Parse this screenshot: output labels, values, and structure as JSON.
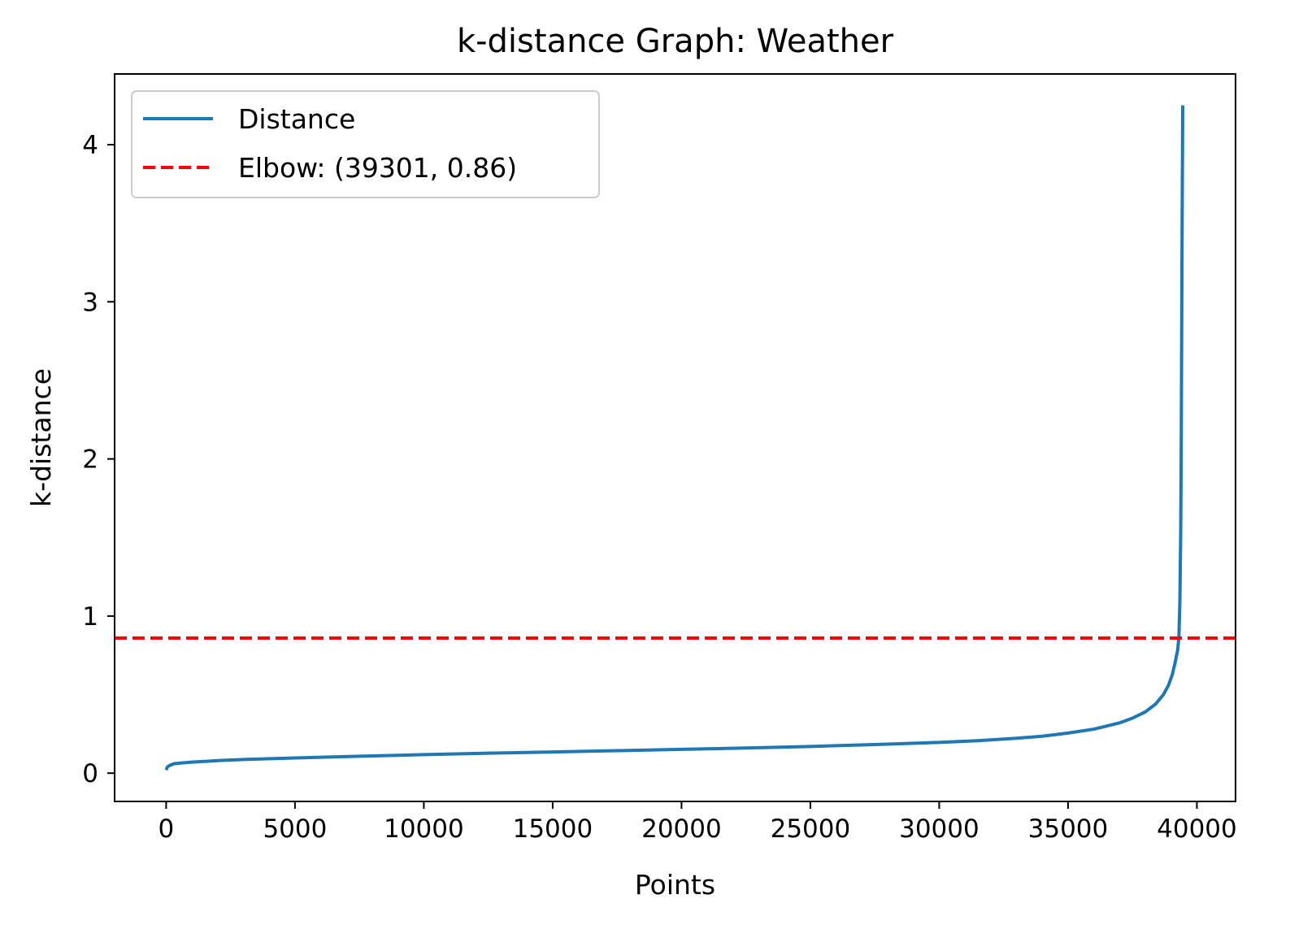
{
  "chart_data": {
    "type": "line",
    "title": "k-distance Graph: Weather",
    "xlabel": "Points",
    "ylabel": "k-distance",
    "xlim": [
      -2000,
      41500
    ],
    "ylim": [
      -0.18,
      4.45
    ],
    "xticks": [
      0,
      5000,
      10000,
      15000,
      20000,
      25000,
      30000,
      35000,
      40000
    ],
    "xtick_labels": [
      "0",
      "5000",
      "10000",
      "15000",
      "20000",
      "25000",
      "30000",
      "35000",
      "40000"
    ],
    "yticks": [
      0,
      1,
      2,
      3,
      4
    ],
    "ytick_labels": [
      "0",
      "1",
      "2",
      "3",
      "4"
    ],
    "grid": false,
    "legend_position": "top-left",
    "series": [
      {
        "name": "Distance",
        "color": "#1f77b4",
        "style": "solid",
        "x": [
          0,
          50,
          150,
          300,
          600,
          1000,
          2000,
          3000,
          5000,
          7500,
          10000,
          12500,
          15000,
          17500,
          20000,
          22500,
          25000,
          27500,
          30000,
          31500,
          33000,
          34000,
          35000,
          36000,
          37000,
          37500,
          38000,
          38400,
          38700,
          38900,
          39050,
          39150,
          39250,
          39301,
          39340,
          39370,
          39390,
          39410,
          39425,
          39440,
          39450
        ],
        "y": [
          0.02,
          0.04,
          0.05,
          0.06,
          0.065,
          0.07,
          0.08,
          0.087,
          0.097,
          0.108,
          0.118,
          0.127,
          0.135,
          0.143,
          0.152,
          0.16,
          0.17,
          0.182,
          0.196,
          0.207,
          0.222,
          0.235,
          0.255,
          0.28,
          0.32,
          0.35,
          0.39,
          0.44,
          0.5,
          0.56,
          0.63,
          0.7,
          0.78,
          0.86,
          1.1,
          1.5,
          2.0,
          2.8,
          3.4,
          3.9,
          4.25
        ]
      },
      {
        "name": "Elbow: (39301, 0.86)",
        "color": "#ff0000",
        "style": "dashed",
        "kind": "horizontal-line",
        "y_value": 0.86
      }
    ]
  }
}
